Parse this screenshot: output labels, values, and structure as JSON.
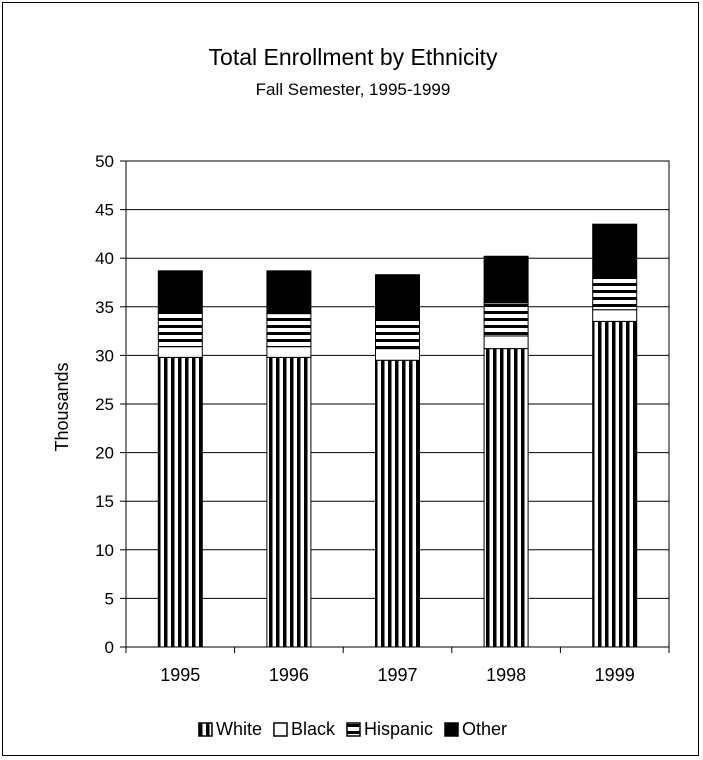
{
  "chart_data": {
    "type": "bar",
    "stacked": true,
    "title": "Total Enrollment by Ethnicity",
    "subtitle": "Fall Semester, 1995-1999",
    "xlabel": "",
    "ylabel": "Thousands",
    "ylim": [
      0,
      50
    ],
    "ytick_step": 5,
    "grid": true,
    "legend_position": "bottom",
    "categories": [
      "1995",
      "1996",
      "1997",
      "1998",
      "1999"
    ],
    "series": [
      {
        "name": "White",
        "pattern": "vertical-stripes",
        "values": [
          29.8,
          29.8,
          29.5,
          30.7,
          33.5
        ]
      },
      {
        "name": "Black",
        "pattern": "solid-white",
        "values": [
          1.1,
          1.1,
          1.2,
          1.3,
          1.2
        ]
      },
      {
        "name": "Hispanic",
        "pattern": "horizontal-stripes",
        "values": [
          3.5,
          3.4,
          3.2,
          3.4,
          3.4
        ]
      },
      {
        "name": "Other",
        "pattern": "solid-black",
        "values": [
          4.3,
          4.4,
          4.4,
          4.8,
          5.4
        ]
      }
    ]
  }
}
